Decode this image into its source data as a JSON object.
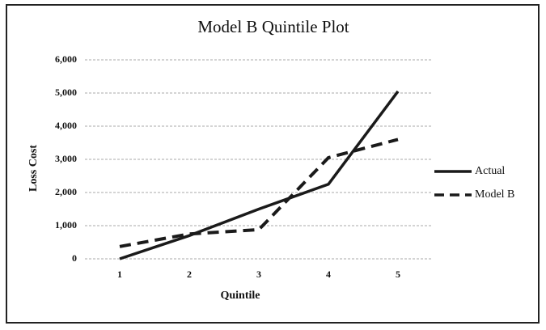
{
  "chart_data": {
    "type": "line",
    "title": "Model B Quintile Plot",
    "x_label": "Quintile",
    "y_label": "Loss Cost",
    "categories": [
      "1",
      "2",
      "3",
      "4",
      "5"
    ],
    "series": [
      {
        "name": "Actual",
        "color": "#1a1a1a",
        "dash": "solid",
        "values": [
          0,
          700,
          1500,
          2250,
          5050
        ]
      },
      {
        "name": "Model B",
        "color": "#1a1a1a",
        "dash": "dashed",
        "values": [
          370,
          750,
          880,
          3050,
          3600
        ]
      }
    ],
    "ylim": [
      0,
      6000
    ],
    "yticks": [
      0,
      {
        "value": 1000,
        "label": "1,000"
      },
      {
        "value": 2000,
        "label": "2,000"
      },
      {
        "value": 3000,
        "label": "3,000"
      },
      {
        "value": 4000,
        "label": "4,000"
      },
      {
        "value": 5000,
        "label": "5,000"
      },
      {
        "value": 6000,
        "label": "6,000"
      }
    ],
    "grid": true,
    "legend": "right"
  }
}
